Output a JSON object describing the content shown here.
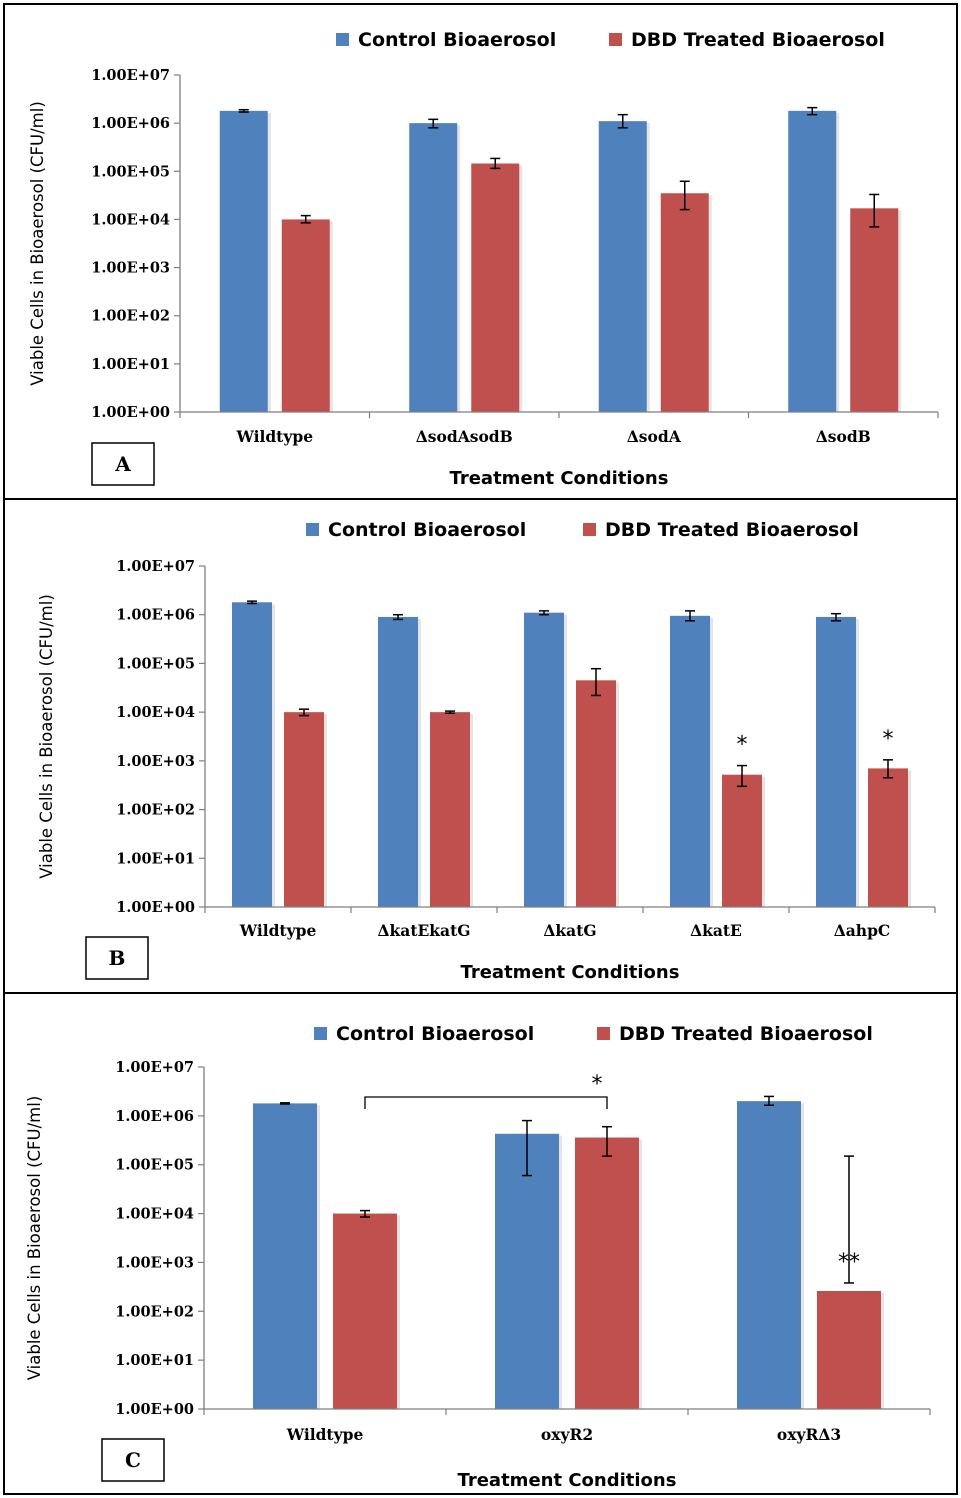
{
  "colors": {
    "control": "#4f81bd",
    "treated": "#c0504d"
  },
  "chart_data": [
    {
      "panel": "A",
      "type": "bar",
      "xlabel": "Treatment Conditions",
      "ylabel": "Viable Cells in Bioaerosol (CFU/ml)",
      "y_scale": "log",
      "ylim": [
        1,
        10000000
      ],
      "yticks": [
        "1.00E+00",
        "1.00E+01",
        "1.00E+02",
        "1.00E+03",
        "1.00E+04",
        "1.00E+05",
        "1.00E+06",
        "1.00E+07"
      ],
      "legend_position": "top",
      "categories": [
        "Wildtype",
        "ΔsodAsodB",
        "ΔsodA",
        "ΔsodB"
      ],
      "series": [
        {
          "name": "Control Bioaerosol",
          "values": [
            1800000,
            1000000,
            1100000,
            1800000
          ],
          "errors": [
            [
              1700000,
              1900000
            ],
            [
              800000,
              1200000
            ],
            [
              800000,
              1500000
            ],
            [
              1500000,
              2100000
            ]
          ]
        },
        {
          "name": "DBD Treated Bioaerosol",
          "values": [
            10000,
            145000,
            35000,
            17000
          ],
          "errors": [
            [
              8500,
              12000
            ],
            [
              115000,
              185000
            ],
            [
              16000,
              62000
            ],
            [
              7000,
              33000
            ]
          ]
        }
      ],
      "annotations": []
    },
    {
      "panel": "B",
      "type": "bar",
      "xlabel": "Treatment Conditions",
      "ylabel": "Viable Cells in Bioaerosol (CFU/ml)",
      "y_scale": "log",
      "ylim": [
        1,
        10000000
      ],
      "yticks": [
        "1.00E+00",
        "1.00E+01",
        "1.00E+02",
        "1.00E+03",
        "1.00E+04",
        "1.00E+05",
        "1.00E+06",
        "1.00E+07"
      ],
      "legend_position": "top",
      "categories": [
        "Wildtype",
        "ΔkatEkatG",
        "ΔkatG",
        "ΔkatE",
        "ΔahpC"
      ],
      "series": [
        {
          "name": "Control Bioaerosol",
          "values": [
            1800000,
            900000,
            1100000,
            950000,
            900000
          ],
          "errors": [
            [
              1700000,
              1900000
            ],
            [
              800000,
              1000000
            ],
            [
              1000000,
              1200000
            ],
            [
              750000,
              1200000
            ],
            [
              750000,
              1050000
            ]
          ]
        },
        {
          "name": "DBD Treated Bioaerosol",
          "values": [
            10000,
            10000,
            45000,
            520,
            700
          ],
          "errors": [
            [
              8500,
              11500
            ],
            [
              9500,
              10500
            ],
            [
              22000,
              78000
            ],
            [
              300,
              800
            ],
            [
              450,
              1050
            ]
          ]
        }
      ],
      "annotations": [
        {
          "text": "*",
          "category": "ΔkatE",
          "series": "DBD Treated Bioaerosol"
        },
        {
          "text": "*",
          "category": "ΔahpC",
          "series": "DBD Treated Bioaerosol"
        }
      ]
    },
    {
      "panel": "C",
      "type": "bar",
      "xlabel": "Treatment Conditions",
      "ylabel": "Viable Cells in Bioaerosol (CFU/ml)",
      "y_scale": "log",
      "ylim": [
        1,
        10000000
      ],
      "yticks": [
        "1.00E+00",
        "1.00E+01",
        "1.00E+02",
        "1.00E+03",
        "1.00E+04",
        "1.00E+05",
        "1.00E+06",
        "1.00E+07"
      ],
      "legend_position": "top",
      "categories": [
        "Wildtype",
        "oxyR2",
        "oxyRΔ3"
      ],
      "series": [
        {
          "name": "Control Bioaerosol",
          "values": [
            1800000,
            430000,
            2000000
          ],
          "errors": [
            [
              1750000,
              1850000
            ],
            [
              60000,
              800000
            ],
            [
              1650000,
              2500000
            ]
          ]
        },
        {
          "name": "DBD Treated Bioaerosol",
          "values": [
            10000,
            360000,
            260
          ],
          "errors": [
            [
              8500,
              11500
            ],
            [
              150000,
              600000
            ],
            [
              150000,
              380
            ]
          ]
        }
      ],
      "annotations": [
        {
          "text": "*",
          "type": "bracket",
          "from": "Wildtype",
          "to": "oxyR2"
        },
        {
          "text": "**",
          "category": "oxyRΔ3",
          "series": "DBD Treated Bioaerosol"
        }
      ]
    }
  ]
}
